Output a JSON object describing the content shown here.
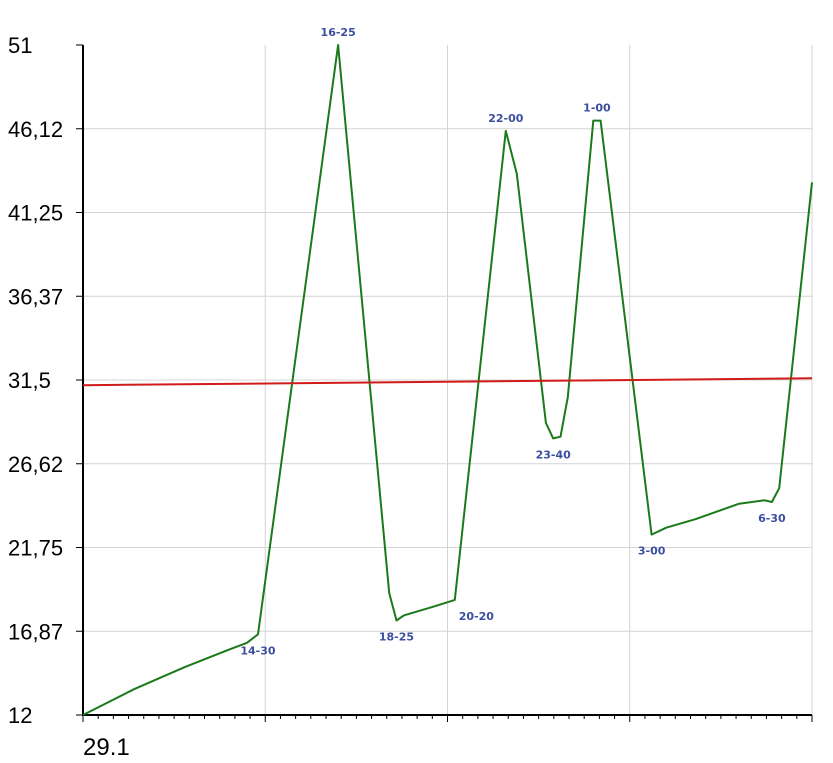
{
  "chart_data": {
    "type": "line",
    "ylim": [
      12,
      51
    ],
    "y_ticks": [
      "51",
      "46,12",
      "41,25",
      "36,37",
      "31,5",
      "26,62",
      "21,75",
      "16,87",
      "12"
    ],
    "x_tick_label": "29.1",
    "grid": true,
    "series": [
      {
        "color": "#1a7a1a",
        "points": [
          [
            0.0,
            12.0
          ],
          [
            0.07,
            13.5
          ],
          [
            0.14,
            14.8
          ],
          [
            0.2,
            15.8
          ],
          [
            0.225,
            16.2
          ],
          [
            0.24,
            16.7
          ],
          [
            0.35,
            51.0
          ],
          [
            0.42,
            19.1
          ],
          [
            0.43,
            17.5
          ],
          [
            0.44,
            17.8
          ],
          [
            0.48,
            18.3
          ],
          [
            0.51,
            18.7
          ],
          [
            0.58,
            46.0
          ],
          [
            0.595,
            43.5
          ],
          [
            0.635,
            29.0
          ],
          [
            0.645,
            28.1
          ],
          [
            0.655,
            28.2
          ],
          [
            0.665,
            30.5
          ],
          [
            0.7,
            46.6
          ],
          [
            0.71,
            46.6
          ],
          [
            0.78,
            22.5
          ],
          [
            0.8,
            22.9
          ],
          [
            0.84,
            23.4
          ],
          [
            0.9,
            24.3
          ],
          [
            0.935,
            24.5
          ],
          [
            0.945,
            24.4
          ],
          [
            0.955,
            25.2
          ],
          [
            1.0,
            43.0
          ]
        ]
      },
      {
        "color": "#d11a1a",
        "points": [
          [
            0.0,
            31.2
          ],
          [
            1.0,
            31.6
          ]
        ]
      }
    ],
    "annotations": [
      {
        "text": "16-25",
        "x": 0.35,
        "y": 51.0,
        "pos": "above"
      },
      {
        "text": "22-00",
        "x": 0.58,
        "y": 46.0,
        "pos": "above"
      },
      {
        "text": "1-00",
        "x": 0.705,
        "y": 46.6,
        "pos": "above"
      },
      {
        "text": "23-40",
        "x": 0.645,
        "y": 28.1,
        "pos": "below"
      },
      {
        "text": "18-25",
        "x": 0.43,
        "y": 17.5,
        "pos": "below"
      },
      {
        "text": "20-20",
        "x": 0.51,
        "y": 18.7,
        "pos": "below-right"
      },
      {
        "text": "14-30",
        "x": 0.24,
        "y": 16.7,
        "pos": "below"
      },
      {
        "text": "3-00",
        "x": 0.78,
        "y": 22.5,
        "pos": "below"
      },
      {
        "text": "6-30",
        "x": 0.945,
        "y": 24.4,
        "pos": "below"
      }
    ]
  }
}
